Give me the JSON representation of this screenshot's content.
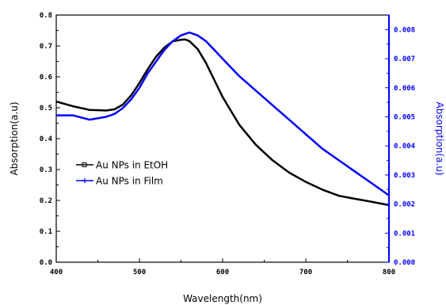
{
  "chart_data": {
    "type": "line",
    "xlabel": "Wavelength(nm)",
    "ylabel_left": "Absorption(a.u)",
    "ylabel_right": "Absorption(a.u)",
    "xlim": [
      400,
      800
    ],
    "ylim_left": [
      0.0,
      0.8
    ],
    "ylim_right": [
      0.0,
      0.0085
    ],
    "x_ticks": [
      "400",
      "500",
      "600",
      "700",
      "800"
    ],
    "y_ticks_left": [
      "0.0",
      "0.1",
      "0.2",
      "0.3",
      "0.4",
      "0.5",
      "0.6",
      "0.7",
      "0.8"
    ],
    "y_ticks_right": [
      "0.000",
      "0.001",
      "0.002",
      "0.003",
      "0.004",
      "0.005",
      "0.006",
      "0.007",
      "0.008"
    ],
    "grid": false,
    "legend_position": "center-left",
    "series": [
      {
        "name": "Au NPs in EtOH",
        "axis": "left",
        "color": "#000000",
        "x": [
          400,
          420,
          440,
          460,
          470,
          480,
          490,
          500,
          510,
          520,
          530,
          540,
          550,
          555,
          560,
          570,
          580,
          590,
          600,
          620,
          640,
          660,
          680,
          700,
          720,
          740,
          760,
          780,
          800
        ],
        "y": [
          0.52,
          0.505,
          0.493,
          0.491,
          0.495,
          0.51,
          0.54,
          0.58,
          0.625,
          0.665,
          0.695,
          0.715,
          0.72,
          0.721,
          0.716,
          0.69,
          0.645,
          0.59,
          0.535,
          0.445,
          0.38,
          0.33,
          0.29,
          0.26,
          0.235,
          0.215,
          0.205,
          0.195,
          0.185
        ]
      },
      {
        "name": "Au NPs in Film",
        "axis": "right",
        "color": "#0000ff",
        "x": [
          400,
          420,
          440,
          460,
          470,
          480,
          490,
          500,
          510,
          520,
          530,
          540,
          550,
          560,
          570,
          580,
          590,
          600,
          620,
          640,
          660,
          680,
          700,
          720,
          740,
          760,
          780,
          800
        ],
        "y": [
          0.00505,
          0.00505,
          0.0049,
          0.005,
          0.0051,
          0.0053,
          0.0056,
          0.006,
          0.0065,
          0.0069,
          0.0073,
          0.0076,
          0.0078,
          0.0079,
          0.0078,
          0.0076,
          0.0073,
          0.007,
          0.0064,
          0.0059,
          0.0054,
          0.0049,
          0.0044,
          0.0039,
          0.0035,
          0.0031,
          0.0027,
          0.0023
        ]
      }
    ]
  }
}
